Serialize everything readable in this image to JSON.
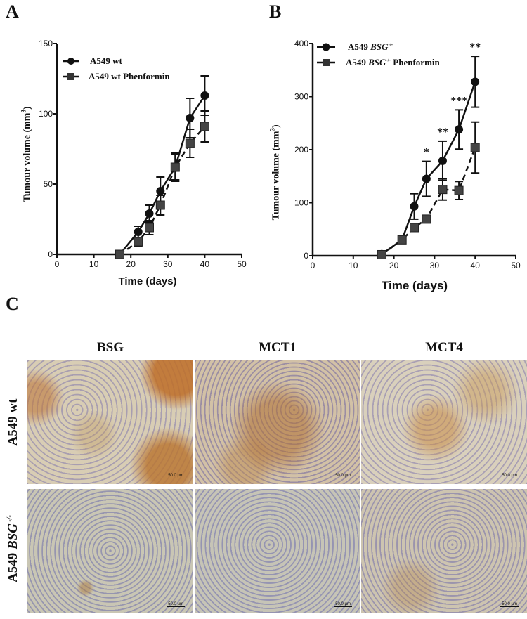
{
  "panels": {
    "A": {
      "letter": "A"
    },
    "B": {
      "letter": "B"
    },
    "C": {
      "letter": "C"
    }
  },
  "chart_data": [
    {
      "type": "line",
      "panel": "A",
      "title": "",
      "xlabel": "Time (days)",
      "ylabel": "Tumour volume (mm³)",
      "xlim": [
        0,
        50
      ],
      "ylim": [
        0,
        150
      ],
      "xticks": [
        0,
        10,
        20,
        30,
        40,
        50
      ],
      "yticks": [
        0,
        50,
        100,
        150
      ],
      "legend_position": "top-left",
      "series": [
        {
          "name": "A549 wt",
          "marker": "circle",
          "line": "solid",
          "x": [
            17,
            22,
            25,
            28,
            32,
            36,
            40
          ],
          "values": [
            0,
            16,
            29,
            45,
            62,
            97,
            113
          ],
          "error": [
            0,
            4,
            6,
            10,
            10,
            14,
            14
          ]
        },
        {
          "name": "A549 wt Phenformin",
          "marker": "square",
          "line": "dashed",
          "x": [
            17,
            22,
            25,
            28,
            32,
            36,
            40
          ],
          "values": [
            0,
            9,
            19,
            35,
            62,
            79,
            91
          ],
          "error": [
            0,
            3,
            5,
            7,
            9,
            10,
            11
          ]
        }
      ],
      "annotations": []
    },
    {
      "type": "line",
      "panel": "B",
      "title": "",
      "xlabel": "Time (days)",
      "ylabel": "Tumour volume (mm³)",
      "xlim": [
        0,
        50
      ],
      "ylim": [
        0,
        400
      ],
      "xticks": [
        0,
        10,
        20,
        30,
        40,
        50
      ],
      "yticks": [
        0,
        100,
        200,
        300,
        400
      ],
      "legend_position": "top-left",
      "series": [
        {
          "name": "A549 BSG-/-",
          "marker": "circle",
          "line": "solid",
          "x": [
            17,
            22,
            25,
            28,
            32,
            36,
            40
          ],
          "values": [
            3,
            30,
            93,
            145,
            179,
            238,
            328
          ],
          "error": [
            0,
            0,
            24,
            33,
            37,
            37,
            48
          ]
        },
        {
          "name": "A549 BSG-/- Phenformin",
          "marker": "square",
          "line": "dashed",
          "x": [
            17,
            22,
            25,
            28,
            32,
            36,
            40
          ],
          "values": [
            2,
            30,
            53,
            69,
            125,
            123,
            204
          ],
          "error": [
            0,
            0,
            0,
            0,
            20,
            17,
            48
          ]
        }
      ],
      "annotations": [
        {
          "x": 28,
          "text": "*"
        },
        {
          "x": 32,
          "text": "**"
        },
        {
          "x": 36,
          "text": "***"
        },
        {
          "x": 40,
          "text": "**"
        }
      ]
    }
  ],
  "legendA": [
    "A549 wt",
    "A549 wt Phenformin"
  ],
  "legendB": {
    "item1_prefix": "A549 ",
    "item1_italic": "BSG",
    "item1_sup": "-/-",
    "item2_prefix": "A549 ",
    "item2_italic": "BSG",
    "item2_sup": "-/-",
    "item2_suffix": " Phenformin"
  },
  "axisA": {
    "ylabel": "Tumour volume (mm",
    "ysup": "3",
    "yclose": ")",
    "xlabel": "Time (days)"
  },
  "axisB": {
    "ylabel": "Tumour volume (mm",
    "ysup": "3",
    "yclose": ")",
    "xlabel": "Time (days)"
  },
  "ihc": {
    "columns": [
      "BSG",
      "MCT1",
      "MCT4"
    ],
    "rows": [
      {
        "label": "A549 wt"
      },
      {
        "label_prefix": "A549 ",
        "label_italic": "BSG",
        "label_sup": " -/-"
      }
    ],
    "scale_bar": "50.0 µm"
  }
}
